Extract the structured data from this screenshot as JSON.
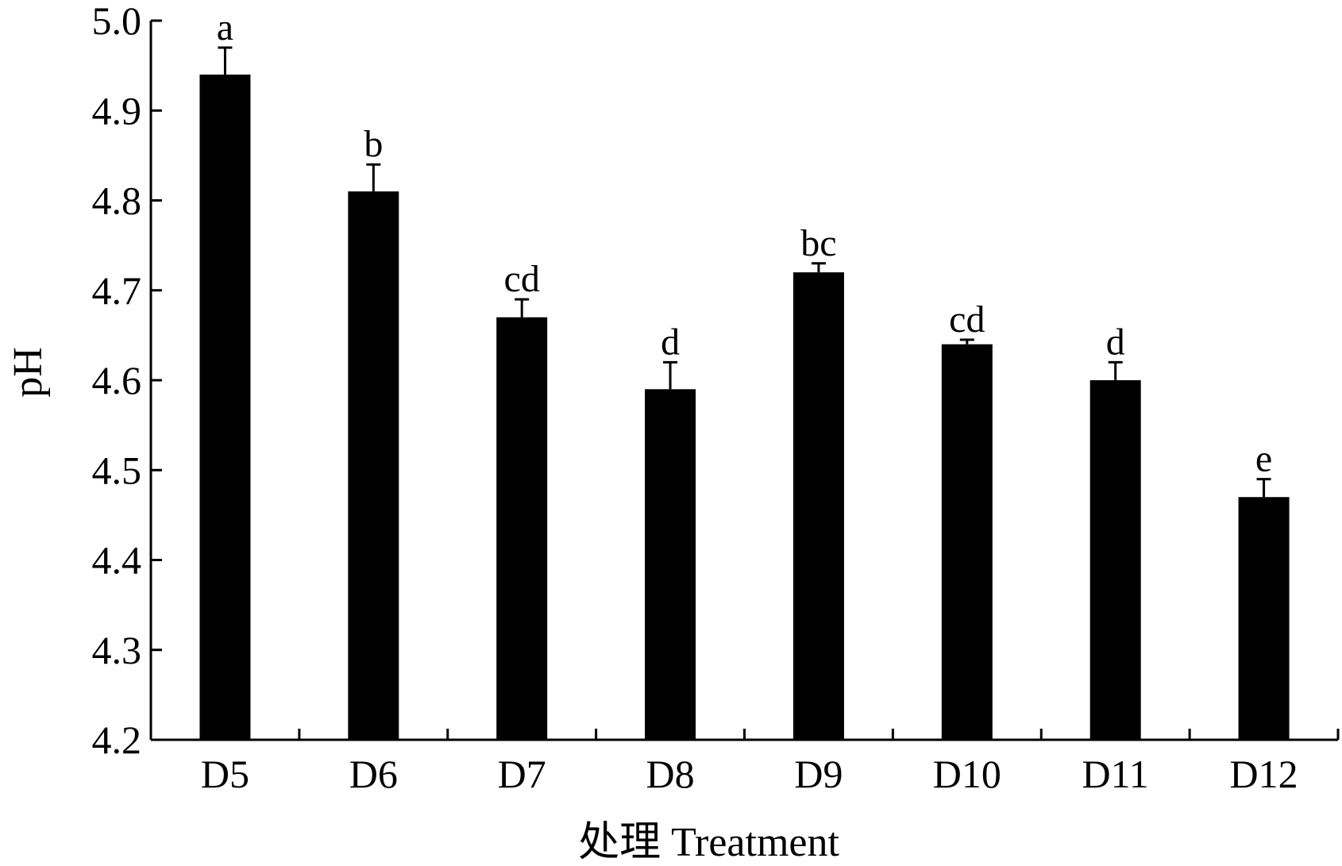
{
  "chart_data": {
    "type": "bar",
    "title": "",
    "xlabel": "处理 Treatment",
    "ylabel": "pH",
    "ylim": [
      4.2,
      5.0
    ],
    "yticks": [
      4.2,
      4.3,
      4.4,
      4.5,
      4.6,
      4.7,
      4.8,
      4.9,
      5.0
    ],
    "ytick_labels": [
      "4.2",
      "4.3",
      "4.4",
      "4.5",
      "4.6",
      "4.7",
      "4.8",
      "4.9",
      "5.0"
    ],
    "categories": [
      "D5",
      "D6",
      "D7",
      "D8",
      "D9",
      "D10",
      "D11",
      "D12"
    ],
    "values": [
      4.94,
      4.81,
      4.67,
      4.59,
      4.72,
      4.64,
      4.6,
      4.47
    ],
    "errors": [
      0.03,
      0.03,
      0.02,
      0.03,
      0.01,
      0.005,
      0.02,
      0.02
    ],
    "significance_letters": [
      "a",
      "b",
      "cd",
      "d",
      "bc",
      "cd",
      "d",
      "e"
    ],
    "grid": false,
    "bar_color": "#000000"
  }
}
